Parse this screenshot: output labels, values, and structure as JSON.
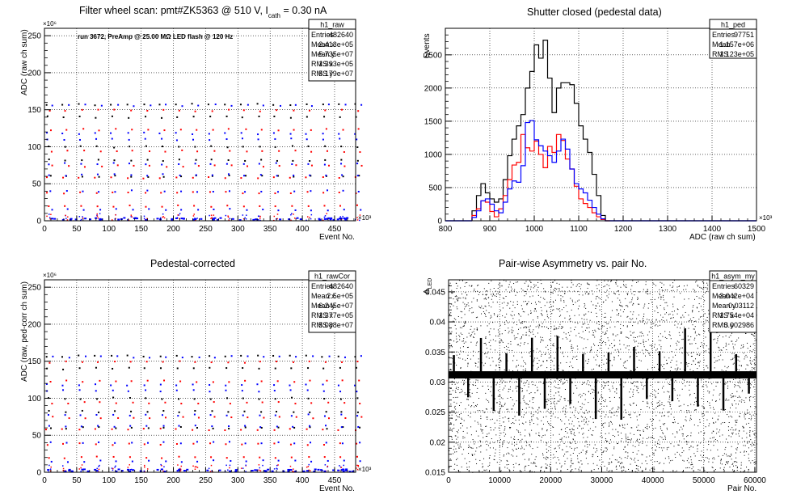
{
  "canvas": {
    "bg": "#ffffff"
  },
  "colors": {
    "black": "#000000",
    "red": "#ff0000",
    "blue": "#0000ff",
    "frame": "#000000"
  },
  "chart_data": [
    {
      "id": "raw",
      "type": "scatter",
      "title_main": "Filter wheel scan: pmt#ZK5363 @   510 V, I",
      "title_sub": "cath",
      "title_tail": " = 0.30 nA",
      "annotation": "run 3672, PreAmp @ 25.00 MΩ LED flash @  120 Hz",
      "xlabel": "Event No.",
      "ylabel": "ADC (raw ch sum)",
      "x_exp": "×10³",
      "y_exp": "×10⁶",
      "xlim": [
        0,
        482.64
      ],
      "ylim": [
        0,
        260
      ],
      "xticks": [
        0,
        50,
        100,
        150,
        200,
        250,
        300,
        350,
        400,
        450
      ],
      "yticks": [
        0,
        50,
        100,
        150,
        200,
        250
      ],
      "grid": true,
      "stats": {
        "name": "h1_raw",
        "rows": [
          [
            "Entries",
            "482640"
          ],
          [
            "Mean x",
            "2.413e+05"
          ],
          [
            "Mean y",
            "5.735e+07"
          ],
          [
            "RMS x",
            "1.393e+05"
          ],
          [
            "RMS y",
            "5.179e+07"
          ]
        ]
      },
      "levels": {
        "black": [
          157,
          140,
          100,
          82,
          60
        ],
        "red": [
          149,
          123,
          94,
          74,
          58,
          38,
          20
        ],
        "blue": [
          156,
          118,
          110,
          77,
          62,
          40,
          15
        ]
      },
      "period": 25.2
    },
    {
      "id": "ped",
      "type": "histogram",
      "title": "Shutter closed (pedestal data)",
      "xlabel": "ADC (raw ch sum)",
      "ylabel": "Events",
      "x_exp": "×10³",
      "xlim": [
        800,
        1500
      ],
      "ylim": [
        0,
        2900
      ],
      "xticks": [
        800,
        900,
        1000,
        1100,
        1200,
        1300,
        1400,
        1500
      ],
      "yticks": [
        0,
        500,
        1000,
        1500,
        2000,
        2500
      ],
      "grid": true,
      "stats": {
        "name": "h1_ped",
        "rows": [
          [
            "Entries",
            "97751"
          ],
          [
            "Mean",
            "1.157e+06"
          ],
          [
            "RMS",
            "1.123e+05"
          ]
        ]
      },
      "bin_start": 860,
      "bin_width": 10,
      "series": [
        {
          "color": "black",
          "values": [
            150,
            380,
            560,
            420,
            330,
            280,
            330,
            620,
            980,
            1230,
            1430,
            1600,
            2000,
            2250,
            2650,
            2450,
            2720,
            2150,
            1630,
            2000,
            2080,
            2080,
            2050,
            1770,
            1430,
            1230,
            1030,
            700,
            380,
            80,
            0
          ]
        },
        {
          "color": "red",
          "values": [
            80,
            180,
            300,
            280,
            140,
            60,
            180,
            380,
            620,
            840,
            880,
            1300,
            1100,
            1050,
            1200,
            1000,
            800,
            1120,
            1030,
            1300,
            1210,
            930,
            780,
            520,
            330,
            260,
            200,
            120,
            60,
            20,
            0
          ]
        },
        {
          "color": "blue",
          "values": [
            50,
            150,
            300,
            330,
            250,
            150,
            120,
            280,
            480,
            600,
            580,
            830,
            1480,
            1510,
            1220,
            1130,
            1050,
            980,
            880,
            1050,
            1230,
            1080,
            780,
            560,
            480,
            420,
            310,
            200,
            100,
            30,
            0
          ]
        }
      ]
    },
    {
      "id": "rawCor",
      "type": "scatter",
      "title": "Pedestal-corrected",
      "xlabel": "Event No.",
      "ylabel": "ADC (raw, ped-corr ch sum)",
      "x_exp": "×10³",
      "y_exp": "×10⁶",
      "xlim": [
        0,
        482.64
      ],
      "ylim": [
        0,
        260
      ],
      "xticks": [
        0,
        50,
        100,
        150,
        200,
        250,
        300,
        350,
        400,
        450
      ],
      "yticks": [
        0,
        50,
        100,
        150,
        200,
        250
      ],
      "grid": true,
      "stats": {
        "name": "h1_rawCor",
        "rows": [
          [
            "Entries",
            "482640"
          ],
          [
            "Mean x",
            "2.5e+05"
          ],
          [
            "Mean y",
            "6.245e+07"
          ],
          [
            "RMS x",
            "1.377e+05"
          ],
          [
            "RMS y",
            "5.088e+07"
          ]
        ]
      },
      "levels": {
        "black": [
          157,
          140,
          100,
          82,
          60
        ],
        "red": [
          149,
          123,
          94,
          74,
          58,
          38,
          20
        ],
        "blue": [
          156,
          118,
          110,
          77,
          62,
          40,
          15
        ]
      },
      "period": 25.2
    },
    {
      "id": "asym",
      "type": "scatter",
      "title": "Pair-wise Asymmetry vs. pair No.",
      "xlabel": "Pair No.",
      "ylabel": "A",
      "ylabel_sub": "LED",
      "xlim": [
        0,
        60329
      ],
      "ylim": [
        0.015,
        0.047
      ],
      "xticks": [
        0,
        10000,
        20000,
        30000,
        40000,
        50000,
        60000
      ],
      "yticks": [
        0.015,
        0.02,
        0.025,
        0.03,
        0.035,
        0.04,
        0.045
      ],
      "grid": true,
      "stats": {
        "name": "h1_asym_my",
        "rows": [
          [
            "Entries",
            "60329"
          ],
          [
            "Mean x",
            "3.042e+04"
          ],
          [
            "Mean y",
            "0.03112"
          ],
          [
            "RMS x",
            "1.754e+04"
          ],
          [
            "RMS y",
            "0.002986"
          ]
        ]
      },
      "band_center": 0.0312,
      "band_width": 0.0006,
      "spike_x": [
        1000,
        3800,
        6300,
        8800,
        11300,
        13800,
        16300,
        18800,
        21300,
        23800,
        26300,
        28800,
        31300,
        33800,
        36300,
        38800,
        41300,
        43800,
        46300,
        48800,
        51300,
        53800,
        56300,
        58800
      ]
    }
  ]
}
